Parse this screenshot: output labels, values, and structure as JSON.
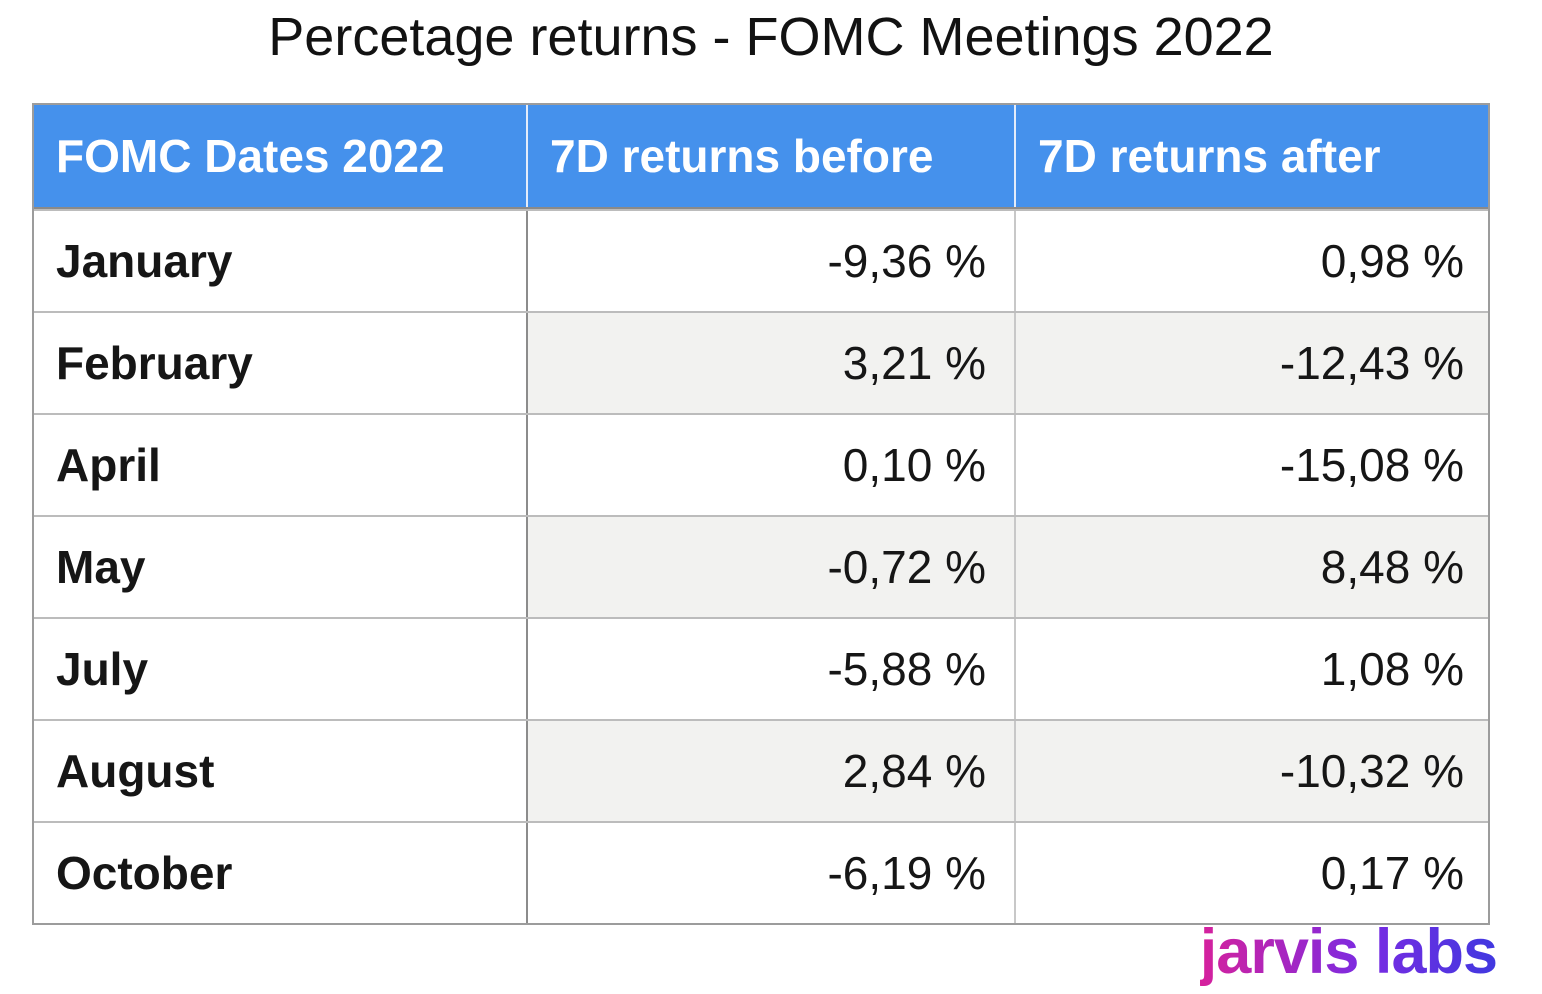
{
  "title": "Percetage returns - FOMC Meetings 2022",
  "table": {
    "headers": [
      "FOMC Dates 2022",
      "7D returns before",
      "7D returns after"
    ],
    "rows": [
      {
        "month": "January",
        "before": "-9,36 %",
        "after": "0,98 %"
      },
      {
        "month": "February",
        "before": "3,21 %",
        "after": "-12,43 %"
      },
      {
        "month": "April",
        "before": "0,10 %",
        "after": "-15,08 %"
      },
      {
        "month": "May",
        "before": "-0,72 %",
        "after": "8,48 %"
      },
      {
        "month": "July",
        "before": "-5,88 %",
        "after": "1,08 %"
      },
      {
        "month": "August",
        "before": "2,84 %",
        "after": "-10,32 %"
      },
      {
        "month": "October",
        "before": "-6,19 %",
        "after": "0,17 %"
      }
    ]
  },
  "chart_data": {
    "type": "table",
    "title": "Percetage returns - FOMC Meetings 2022",
    "columns": [
      "FOMC Dates 2022",
      "7D returns before",
      "7D returns after"
    ],
    "categories": [
      "January",
      "February",
      "April",
      "May",
      "July",
      "August",
      "October"
    ],
    "series": [
      {
        "name": "7D returns before",
        "values": [
          -9.36,
          3.21,
          0.1,
          -0.72,
          -5.88,
          2.84,
          -6.19
        ]
      },
      {
        "name": "7D returns after",
        "values": [
          0.98,
          -12.43,
          -15.08,
          8.48,
          1.08,
          -10.32,
          0.17
        ]
      }
    ],
    "unit": "%",
    "decimal_separator": ","
  },
  "logo": {
    "text": "jarvis labs"
  },
  "colors": {
    "header_bg": "#4591EC",
    "header_text": "#FFFFFF",
    "header_divider": "#E3ECFA",
    "header_separator": "#8A8A8A",
    "stripe_bg": "#F2F2F0",
    "outer_border": "#9C9C9C",
    "row_border": "#BCBCBC",
    "col_divider_dark": "#8C8C8C",
    "col_divider_light": "#C8C8C8",
    "logo_gradient_start": "#D6219C",
    "logo_gradient_mid": "#7B2BE2",
    "logo_gradient_end": "#4038E0"
  }
}
